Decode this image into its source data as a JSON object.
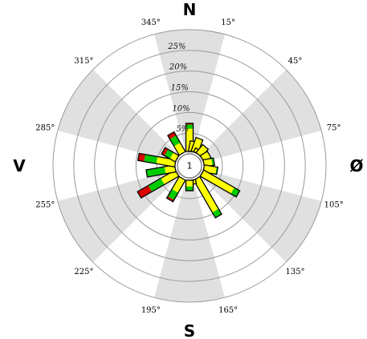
{
  "chart_data": {
    "type": "wind-rose",
    "title": "",
    "cardinals": {
      "n": "N",
      "e": "Ø",
      "s": "S",
      "w": "V"
    },
    "sector_boundaries": [
      "15°",
      "45°",
      "75°",
      "105°",
      "135°",
      "165°",
      "195°",
      "225°",
      "255°",
      "285°",
      "315°",
      "345°"
    ],
    "radial_ticks": [
      "5%",
      "10%",
      "15%",
      "20%",
      "25%"
    ],
    "radial_values": [
      5,
      10,
      15,
      20,
      25
    ],
    "rmax": 30,
    "calm_label": "1",
    "shaded_sectors": [
      0,
      2,
      4,
      6,
      8,
      10
    ],
    "colors": {
      "background": "#ffffff",
      "shade": "#e0e0e0",
      "grid": "#9a9a9a",
      "outline": "#000000",
      "bands": [
        "#ffff00",
        "#00cc00",
        "#dd0000"
      ]
    },
    "bars": [
      {
        "direction": 360,
        "values": [
          5.5,
          1.0,
          0.3
        ]
      },
      {
        "direction": 10,
        "values": [
          2.5
        ]
      },
      {
        "direction": 20,
        "values": [
          3.5
        ]
      },
      {
        "direction": 30,
        "values": [
          1.0
        ]
      },
      {
        "direction": 40,
        "values": [
          2.5
        ]
      },
      {
        "direction": 60,
        "values": [
          2.0
        ]
      },
      {
        "direction": 80,
        "values": [
          2.0,
          0.5
        ]
      },
      {
        "direction": 100,
        "values": [
          3.0,
          0.3
        ]
      },
      {
        "direction": 120,
        "values": [
          8.5,
          1.5
        ]
      },
      {
        "direction": 150,
        "values": [
          9.0,
          1.5
        ]
      },
      {
        "direction": 170,
        "values": [
          1.0
        ]
      },
      {
        "direction": 180,
        "values": [
          1.5,
          1.0
        ]
      },
      {
        "direction": 210,
        "values": [
          3.5,
          2.0,
          0.5
        ]
      },
      {
        "direction": 240,
        "values": [
          4.0,
          3.5,
          3.0
        ]
      },
      {
        "direction": 260,
        "values": [
          2.5,
          4.5
        ]
      },
      {
        "direction": 280,
        "values": [
          4.5,
          3.0,
          1.5
        ]
      },
      {
        "direction": 300,
        "values": [
          1.5,
          1.5,
          0.8
        ]
      },
      {
        "direction": 330,
        "values": [
          2.5,
          2.0,
          1.0
        ]
      }
    ]
  }
}
